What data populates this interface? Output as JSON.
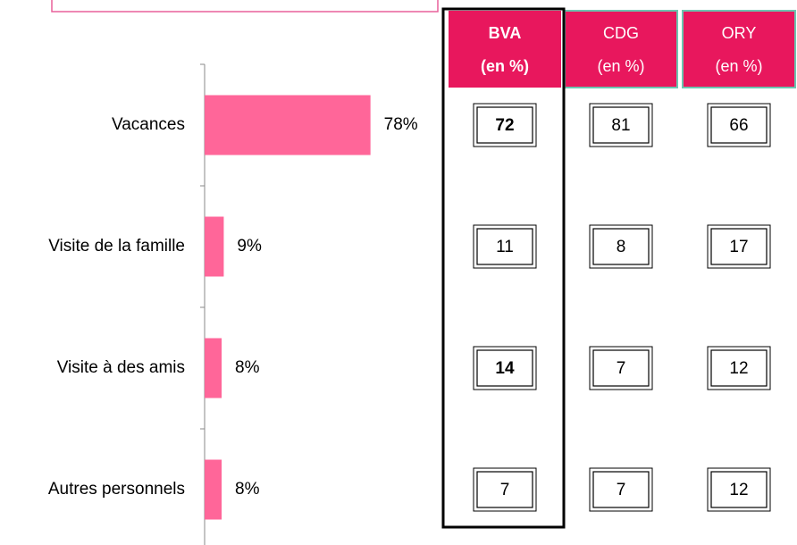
{
  "chart_data": {
    "type": "bar",
    "orientation": "horizontal",
    "categories": [
      "Vacances",
      "Visite de la famille",
      "Visite à des amis",
      "Autres personnels"
    ],
    "values": [
      78,
      9,
      8,
      8
    ],
    "value_labels": [
      "78%",
      "9%",
      "8%",
      "8%"
    ],
    "color": "#ff6699",
    "xlim": [
      0,
      100
    ]
  },
  "table": {
    "columns": [
      {
        "name": "BVA",
        "unit": "(en %)",
        "bold": true,
        "cell_colors": [
          "#e60000",
          "#000000",
          "#7dc242",
          "#000000"
        ]
      },
      {
        "name": "CDG",
        "unit": "(en %)",
        "bold": false
      },
      {
        "name": "ORY",
        "unit": "(en %)",
        "bold": false
      }
    ],
    "header_color": "#e8175d",
    "rows": [
      [
        72,
        81,
        66
      ],
      [
        11,
        8,
        17
      ],
      [
        14,
        7,
        12
      ],
      [
        7,
        7,
        12
      ]
    ]
  }
}
